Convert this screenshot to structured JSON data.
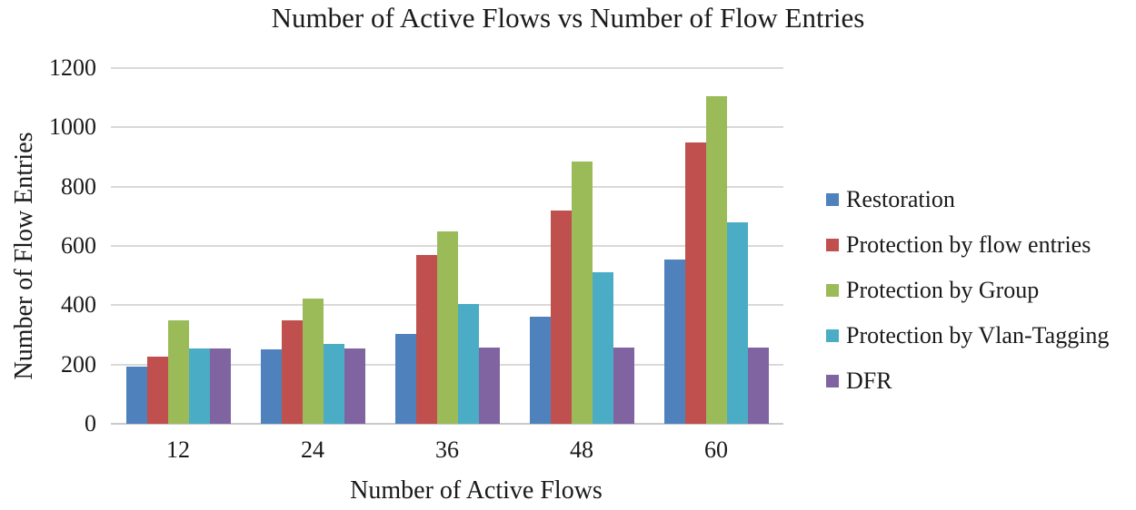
{
  "chart_data": {
    "type": "bar",
    "title": "Number of Active Flows vs Number of Flow Entries",
    "xlabel": "Number of Active Flows",
    "ylabel": "Number of Flow Entries",
    "categories": [
      "12",
      "24",
      "36",
      "48",
      "60"
    ],
    "series": [
      {
        "name": "Restoration",
        "color": "#4F81BD",
        "values": [
          193,
          250,
          303,
          360,
          553
        ]
      },
      {
        "name": "Protection by flow entries",
        "color": "#C0504D",
        "values": [
          228,
          350,
          570,
          720,
          950
        ]
      },
      {
        "name": "Protection by Group",
        "color": "#9BBB59",
        "values": [
          350,
          422,
          650,
          885,
          1105
        ]
      },
      {
        "name": "Protection by Vlan-Tagging",
        "color": "#4BACC6",
        "values": [
          253,
          270,
          403,
          512,
          680
        ]
      },
      {
        "name": "DFR",
        "color": "#8064A2",
        "values": [
          253,
          255,
          257,
          257,
          258
        ]
      }
    ],
    "ylim": [
      0,
      1200
    ],
    "yticks": [
      0,
      200,
      400,
      600,
      800,
      1000,
      1200
    ],
    "ytick_labels": [
      "0",
      "200",
      "400",
      "600",
      "800",
      "1000",
      "1200"
    ],
    "grid": "horizontal",
    "legend_position": "right",
    "gridline_color": "#d9d9d9",
    "text_color": "#1a1a1a"
  }
}
